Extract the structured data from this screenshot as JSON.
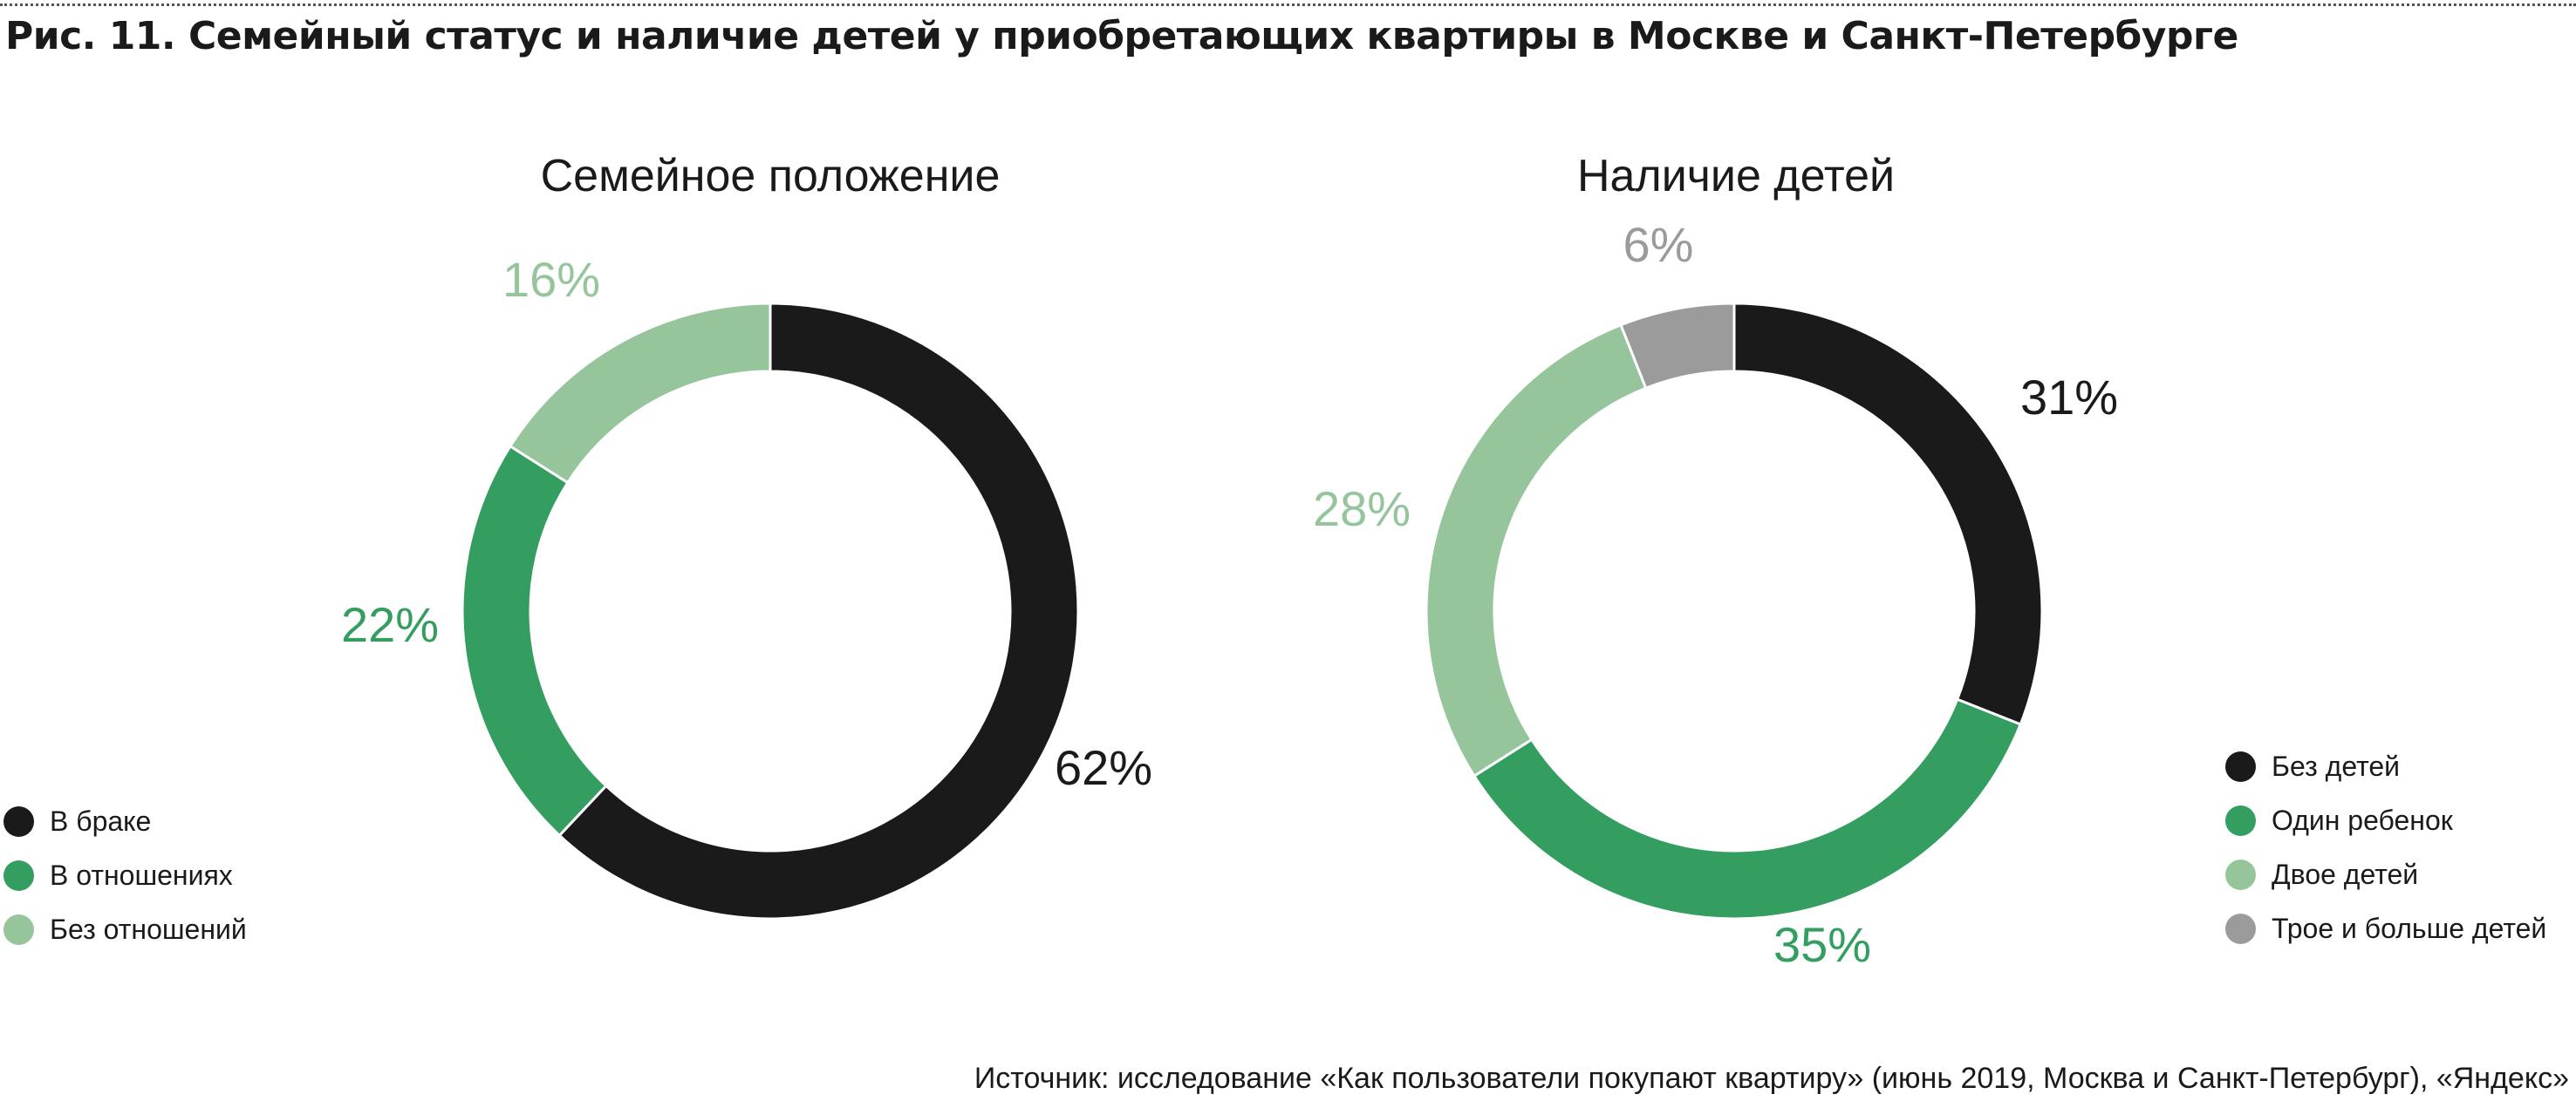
{
  "figure": {
    "title": "Рис. 11. Семейный статус и наличие детей у приобретающих квартиры в Москве и Санкт-Петербурге",
    "source": "Источник: исследование «Как пользователи покупают квартиру» (июнь 2019, Москва и Санкт-Петербург), «Яндекс»"
  },
  "colors": {
    "black": "#1a1a1a",
    "green": "#339e60",
    "light_green": "#96c59c",
    "gray": "#9b9b9b"
  },
  "chart_data": [
    {
      "type": "pie",
      "subtype": "donut",
      "title": "Семейное положение",
      "categories": [
        "В браке",
        "В отношениях",
        "Без отношений"
      ],
      "values": [
        62,
        22,
        16
      ],
      "labels": [
        "62%",
        "22%",
        "16%"
      ],
      "colors": [
        "#1a1a1a",
        "#339e60",
        "#96c59c"
      ],
      "legend_position": "left"
    },
    {
      "type": "pie",
      "subtype": "donut",
      "title": "Наличие детей",
      "categories": [
        "Без детей",
        "Один ребенок",
        "Двое детей",
        "Трое и больше детей"
      ],
      "values": [
        31,
        35,
        28,
        6
      ],
      "labels": [
        "31%",
        "35%",
        "28%",
        "6%"
      ],
      "colors": [
        "#1a1a1a",
        "#339e60",
        "#96c59c",
        "#9b9b9b"
      ],
      "legend_position": "right"
    }
  ]
}
